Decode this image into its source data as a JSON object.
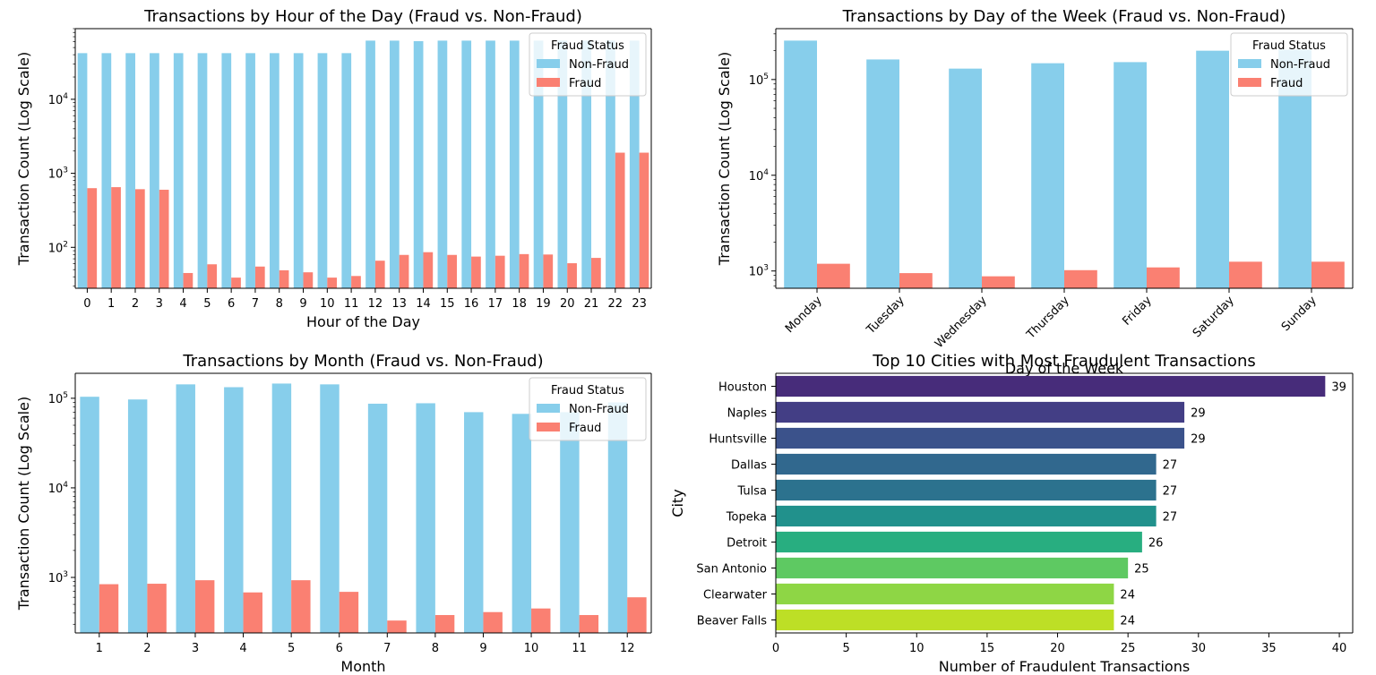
{
  "chart_data": [
    {
      "id": "hour",
      "type": "bar",
      "title": "Transactions by Hour of the Day (Fraud vs. Non-Fraud)",
      "xlabel": "Hour of the Day",
      "ylabel": "Transaction Count (Log Scale)",
      "yscale": "log",
      "ylim": [
        28,
        90000
      ],
      "categories": [
        "0",
        "1",
        "2",
        "3",
        "4",
        "5",
        "6",
        "7",
        "8",
        "9",
        "10",
        "11",
        "12",
        "13",
        "14",
        "15",
        "16",
        "17",
        "18",
        "19",
        "20",
        "21",
        "22",
        "23"
      ],
      "series": [
        {
          "name": "Non-Fraud",
          "color": "#87ceeb",
          "values": [
            42000,
            42000,
            42000,
            42000,
            42000,
            42000,
            42000,
            42000,
            42000,
            42000,
            42000,
            42000,
            62000,
            62000,
            61000,
            62000,
            62000,
            62000,
            62000,
            62000,
            62000,
            62000,
            62000,
            62000
          ]
        },
        {
          "name": "Fraud",
          "color": "#fa8072",
          "values": [
            630,
            650,
            610,
            600,
            45,
            59,
            39,
            55,
            49,
            46,
            39,
            41,
            66,
            79,
            86,
            79,
            75,
            77,
            81,
            80,
            61,
            72,
            1900,
            1900
          ]
        }
      ],
      "legend": {
        "title": "Fraud Status",
        "position": "top-right"
      },
      "grid": false
    },
    {
      "id": "dow",
      "type": "bar",
      "title": "Transactions by Day of the Week (Fraud vs. Non-Fraud)",
      "xlabel": "Day of the Week",
      "ylabel": "Transaction Count (Log Scale)",
      "yscale": "log",
      "ylim": [
        660,
        340000
      ],
      "categories": [
        "Monday",
        "Tuesday",
        "Wednesday",
        "Thursday",
        "Friday",
        "Saturday",
        "Sunday"
      ],
      "series": [
        {
          "name": "Non-Fraud",
          "color": "#87ceeb",
          "values": [
            255000,
            162000,
            130000,
            148000,
            152000,
            200000,
            205000
          ]
        },
        {
          "name": "Fraud",
          "color": "#fa8072",
          "values": [
            1190,
            950,
            880,
            1020,
            1090,
            1250,
            1250
          ]
        }
      ],
      "legend": {
        "title": "Fraud Status",
        "position": "top-right"
      },
      "grid": false
    },
    {
      "id": "month",
      "type": "bar",
      "title": "Transactions by Month (Fraud vs. Non-Fraud)",
      "xlabel": "Month",
      "ylabel": "Transaction Count (Log Scale)",
      "yscale": "log",
      "ylim": [
        240,
        190000
      ],
      "categories": [
        "1",
        "2",
        "3",
        "4",
        "5",
        "6",
        "7",
        "8",
        "9",
        "10",
        "11",
        "12"
      ],
      "series": [
        {
          "name": "Non-Fraud",
          "color": "#87ceeb",
          "values": [
            104000,
            97000,
            143000,
            133000,
            146000,
            143000,
            87000,
            88000,
            70000,
            67000,
            70000,
            90000
          ]
        },
        {
          "name": "Fraud",
          "color": "#fa8072",
          "values": [
            840,
            850,
            930,
            680,
            930,
            690,
            330,
            380,
            410,
            450,
            380,
            600
          ]
        }
      ],
      "legend": {
        "title": "Fraud Status",
        "position": "top-right"
      },
      "grid": false
    },
    {
      "id": "cities",
      "type": "bar",
      "orientation": "horizontal",
      "title": "Top 10 Cities with Most Fraudulent Transactions",
      "xlabel": "Number of Fraudulent Transactions",
      "ylabel": "City",
      "xlim": [
        0,
        40.95
      ],
      "xticks": [
        0,
        5,
        10,
        15,
        20,
        25,
        30,
        35,
        40
      ],
      "categories": [
        "Houston",
        "Naples",
        "Huntsville",
        "Dallas",
        "Tulsa",
        "Topeka",
        "Detroit",
        "San Antonio",
        "Clearwater",
        "Beaver Falls"
      ],
      "values": [
        39,
        29,
        29,
        27,
        27,
        27,
        26,
        25,
        24,
        24
      ],
      "colors": [
        "#472c7a",
        "#433e85",
        "#3b528b",
        "#31688e",
        "#2c728e",
        "#21918c",
        "#28ae80",
        "#5ec962",
        "#8ed645",
        "#bddf26"
      ],
      "data_labels": true,
      "grid": false
    }
  ]
}
